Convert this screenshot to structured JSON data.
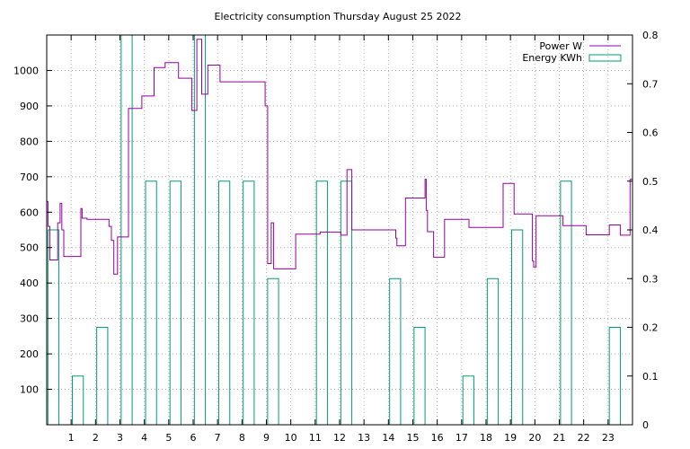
{
  "chart_data": {
    "type": "line",
    "title": "Electricity consumption Thursday August 25 2022",
    "grid": true,
    "legend_position": "top-right",
    "x_ticks": [
      "1",
      "2",
      "3",
      "4",
      "5",
      "6",
      "7",
      "8",
      "9",
      "10",
      "11",
      "12",
      "13",
      "14",
      "15",
      "16",
      "17",
      "18",
      "19",
      "20",
      "21",
      "22",
      "23"
    ],
    "y_ticks": [
      "100",
      "200",
      "300",
      "400",
      "500",
      "600",
      "700",
      "800",
      "900",
      "1000"
    ],
    "y2_ticks": [
      "0",
      "0.1",
      "0.2",
      "0.3",
      "0.4",
      "0.5",
      "0.6",
      "0.7",
      "0.8"
    ],
    "xlim": [
      0,
      24
    ],
    "ylim": [
      0,
      1100
    ],
    "y2lim": [
      0,
      0.8
    ],
    "series": [
      {
        "name": "Power W",
        "color": "#94009e",
        "axis": "y",
        "style": "steps",
        "x": [
          0.0,
          0.05,
          0.13,
          0.2,
          0.45,
          0.55,
          0.62,
          0.7,
          0.85,
          1.4,
          1.45,
          1.65,
          2.55,
          2.65,
          2.75,
          2.9,
          3.25,
          3.35,
          3.9,
          4.4,
          4.85,
          5.4,
          5.95,
          6.15,
          6.35,
          6.6,
          7.1,
          7.6,
          8.95,
          9.05,
          9.2,
          9.3,
          9.85,
          10.2,
          11.2,
          12.05,
          12.3,
          12.5,
          13.8,
          14.3,
          14.35,
          14.7,
          15.5,
          15.55,
          15.6,
          15.85,
          16.3,
          17.3,
          18.2,
          18.7,
          19.15,
          19.9,
          19.95,
          20.05,
          21.15,
          22.1,
          23.05,
          23.5,
          23.9,
          24.0
        ],
        "y": [
          630,
          560,
          465,
          465,
          570,
          625,
          550,
          475,
          475,
          610,
          583,
          580,
          560,
          520,
          425,
          530,
          530,
          893,
          928,
          1008,
          1022,
          978,
          887,
          1088,
          933,
          1015,
          968,
          968,
          900,
          455,
          570,
          440,
          440,
          538,
          544,
          535,
          720,
          550,
          550,
          527,
          505,
          640,
          693,
          605,
          545,
          473,
          580,
          557,
          557,
          681,
          595,
          462,
          445,
          590,
          562,
          536,
          564,
          535,
          693,
          700
        ]
      },
      {
        "name": "Energy KWh",
        "color": "#009e73",
        "axis": "y2",
        "style": "boxes",
        "values": [
          0.4,
          0.1,
          0.2,
          0.8,
          0.5,
          0.5,
          0.8,
          0.5,
          0.5,
          0.3,
          0.0,
          0.5,
          0.5,
          0.0,
          0.3,
          0.2,
          0.0,
          0.1,
          0.3,
          0.4,
          0.0,
          0.5,
          0.0,
          0.2
        ]
      }
    ]
  }
}
